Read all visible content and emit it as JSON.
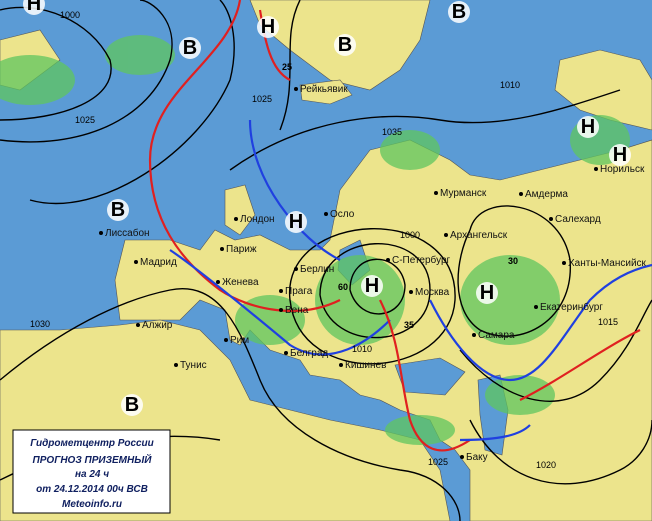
{
  "legend": {
    "lines": [
      "Гидрометцентр России",
      "ПРОГНОЗ ПРИЗЕМНЫЙ",
      "на 24 ч",
      "от 24.12.2014 00ч ВСВ",
      "Meteoinfo.ru"
    ]
  },
  "cities": [
    "Рейкьявик",
    "Лиссабон",
    "Мадрид",
    "Алжир",
    "Тунис",
    "Рим",
    "Париж",
    "Лондон",
    "Осло",
    "Женева",
    "Прага",
    "Вена",
    "Белград",
    "Кишинев",
    "Берлин",
    "С-Петербург",
    "Москва",
    "Мурманск",
    "Архангельск",
    "Амдерма",
    "Салехард",
    "Ханты-Мансийск",
    "Екатеринбург",
    "Самара",
    "Баку",
    "Норильск"
  ],
  "centers": [
    "Н",
    "Н",
    "Н",
    "Н",
    "Н",
    "Н",
    "Н",
    "В",
    "В",
    "В",
    "В",
    "В"
  ],
  "isobar_labels": [
    1000,
    1025,
    1025,
    1035,
    1010,
    1000,
    1010,
    1030,
    1025,
    1020,
    1015
  ],
  "marks": [
    25,
    30,
    60,
    35
  ]
}
